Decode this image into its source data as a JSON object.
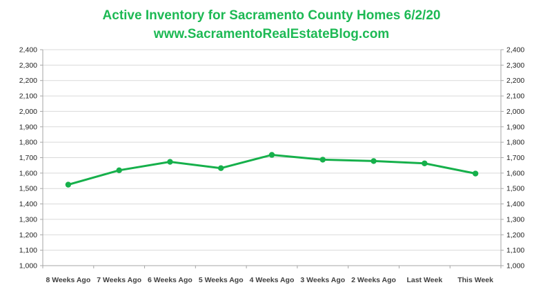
{
  "chart_data": {
    "type": "line",
    "title": "Active Inventory for Sacramento County Homes 6/2/20",
    "subtitle": "www.SacramentoRealEstateBlog.com",
    "categories": [
      "8 Weeks Ago",
      "7 Weeks Ago",
      "6 Weeks Ago",
      "5 Weeks Ago",
      "4 Weeks Ago",
      "3 Weeks Ago",
      "2 Weeks Ago",
      "Last Week",
      "This Week"
    ],
    "series": [
      {
        "values": [
          1525,
          1618,
          1673,
          1632,
          1718,
          1687,
          1678,
          1663,
          1597
        ]
      }
    ],
    "ylim": [
      1000,
      2400
    ],
    "ytick_step": 100,
    "yticks_both_sides": true,
    "grid": true,
    "highlight_category": "This Week",
    "xlabel": "",
    "ylabel": ""
  },
  "colors": {
    "title": "#1db954",
    "line": "#16b04b",
    "highlight_label": "#16b04b",
    "grid": "#d9d9d9",
    "axis": "#a6a6a6"
  }
}
